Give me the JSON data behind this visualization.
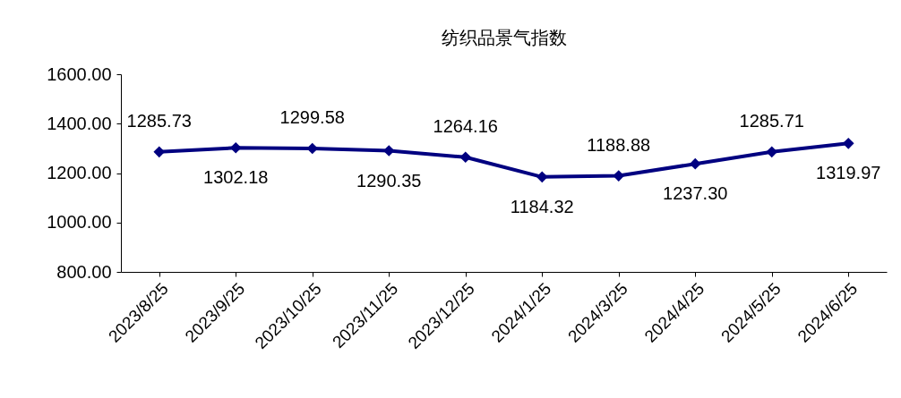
{
  "chart_data": {
    "type": "line",
    "title": "纺织品景气指数",
    "categories": [
      "2023/8/25",
      "2023/9/25",
      "2023/10/25",
      "2023/11/25",
      "2023/12/25",
      "2024/1/25",
      "2024/3/25",
      "2024/4/25",
      "2024/5/25",
      "2024/6/25"
    ],
    "series": [
      {
        "color": "#000080",
        "values": [
          1285.73,
          1302.18,
          1299.58,
          1290.35,
          1264.16,
          1184.32,
          1188.88,
          1237.3,
          1285.71,
          1319.97
        ],
        "value_labels": [
          "1285.73",
          "1302.18",
          "1299.58",
          "1290.35",
          "1264.16",
          "1184.32",
          "1188.88",
          "1237.30",
          "1285.71",
          "1319.97"
        ]
      }
    ],
    "ylim": [
      800,
      1600
    ],
    "yticks": [
      {
        "value": 800,
        "label": "800.00"
      },
      {
        "value": 1000,
        "label": "1000.00"
      },
      {
        "value": 1200,
        "label": "1200.00"
      },
      {
        "value": 1400,
        "label": "1400.00"
      },
      {
        "value": 1600,
        "label": "1600.00"
      }
    ],
    "grid": false,
    "marker": "diamond",
    "line_style": "solid"
  }
}
